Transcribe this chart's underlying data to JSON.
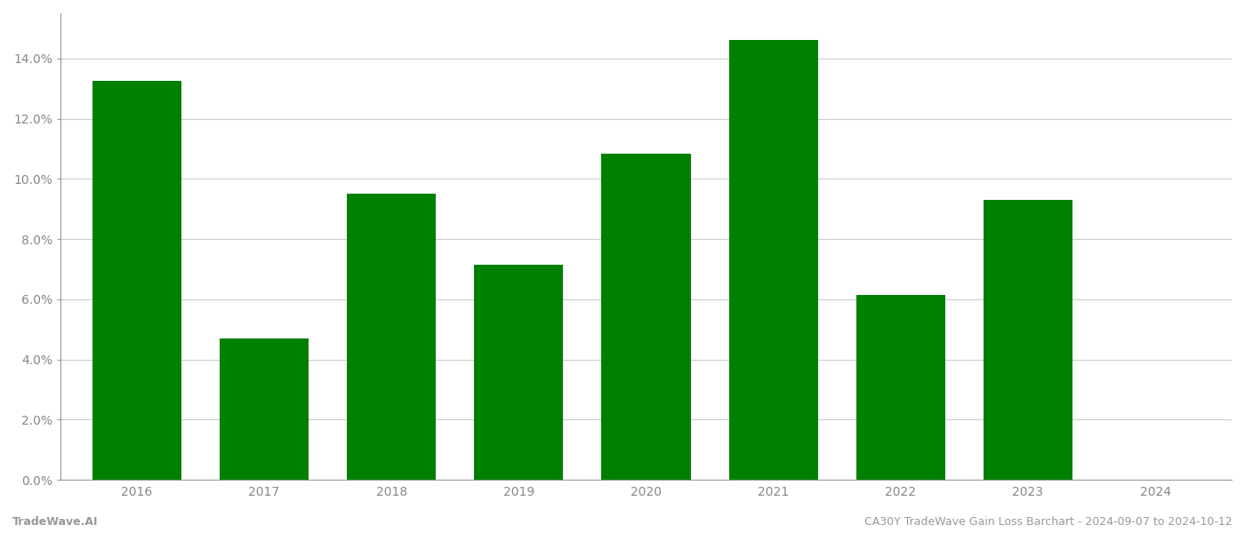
{
  "categories": [
    "2016",
    "2017",
    "2018",
    "2019",
    "2020",
    "2021",
    "2022",
    "2023",
    "2024"
  ],
  "values": [
    0.1325,
    0.047,
    0.095,
    0.0715,
    0.1085,
    0.146,
    0.0615,
    0.093,
    null
  ],
  "bar_color": "#008000",
  "background_color": "#ffffff",
  "grid_color": "#cccccc",
  "watermark_left": "TradeWave.AI",
  "watermark_right": "CA30Y TradeWave Gain Loss Barchart - 2024-09-07 to 2024-10-12",
  "watermark_fontsize": 9,
  "watermark_color": "#999999",
  "tick_label_color": "#888888",
  "tick_label_fontsize": 10,
  "bar_width": 0.7,
  "ylim_min": 0.0,
  "ylim_max": 0.155,
  "ytick_step": 0.02
}
